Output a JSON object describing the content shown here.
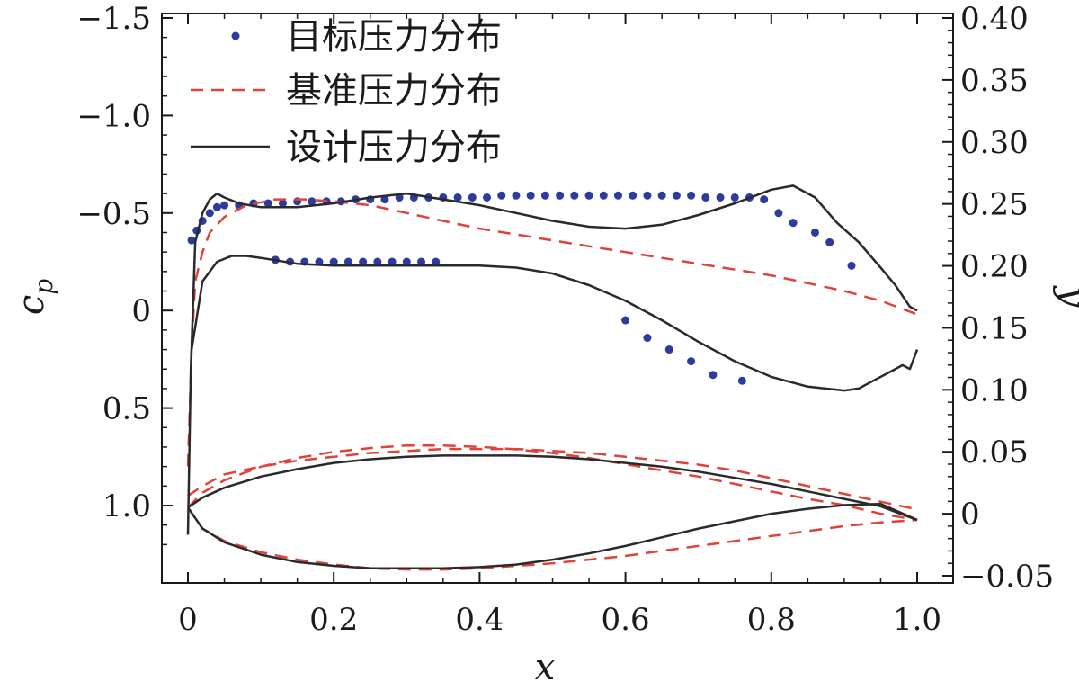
{
  "chart_data": {
    "type": "line",
    "xlabel": "x",
    "ylabel_left": "c_p",
    "ylabel_right": "y",
    "xlim": [
      0,
      1.0
    ],
    "ylim_left": [
      1.3,
      -1.5
    ],
    "ylim_right": [
      -0.05,
      0.4
    ],
    "x_ticks": [
      "0",
      "0.2",
      "0.4",
      "0.6",
      "0.8",
      "1.0"
    ],
    "y_left_ticks": [
      "−1.5",
      "−1.0",
      "−0.5",
      "0",
      "0.5",
      "1.0"
    ],
    "y_right_ticks": [
      "0.40",
      "0.35",
      "0.30",
      "0.25",
      "0.20",
      "0.15",
      "0.10",
      "0.05",
      "0",
      "−0.05"
    ],
    "legend_position": "top-left",
    "grid": false,
    "series": [
      {
        "name": "目标压力分布",
        "style": "dots",
        "color": "#2b3b9e",
        "axis": "left",
        "segments": [
          {
            "x": [
              0.005,
              0.012,
              0.02,
              0.03,
              0.04,
              0.05,
              0.07,
              0.09,
              0.11,
              0.13,
              0.15,
              0.17,
              0.19,
              0.21,
              0.23,
              0.25,
              0.27,
              0.29,
              0.31,
              0.33,
              0.35,
              0.37,
              0.39,
              0.41,
              0.43,
              0.45,
              0.47,
              0.49,
              0.51,
              0.53,
              0.55,
              0.57,
              0.59,
              0.61,
              0.63,
              0.65,
              0.67,
              0.69,
              0.71,
              0.73,
              0.75,
              0.77,
              0.79,
              0.81,
              0.83,
              0.86,
              0.88,
              0.91
            ],
            "y": [
              -0.36,
              -0.41,
              -0.46,
              -0.5,
              -0.53,
              -0.54,
              -0.54,
              -0.55,
              -0.55,
              -0.55,
              -0.56,
              -0.56,
              -0.56,
              -0.56,
              -0.57,
              -0.57,
              -0.57,
              -0.58,
              -0.58,
              -0.58,
              -0.58,
              -0.58,
              -0.58,
              -0.58,
              -0.59,
              -0.59,
              -0.59,
              -0.59,
              -0.59,
              -0.59,
              -0.59,
              -0.59,
              -0.59,
              -0.59,
              -0.59,
              -0.59,
              -0.59,
              -0.59,
              -0.58,
              -0.58,
              -0.58,
              -0.58,
              -0.57,
              -0.5,
              -0.45,
              -0.4,
              -0.35,
              -0.23
            ]
          },
          {
            "x": [
              0.12,
              0.14,
              0.16,
              0.18,
              0.2,
              0.22,
              0.24,
              0.26,
              0.28,
              0.3,
              0.32,
              0.34
            ],
            "y": [
              -0.26,
              -0.25,
              -0.25,
              -0.25,
              -0.25,
              -0.25,
              -0.25,
              -0.25,
              -0.25,
              -0.25,
              -0.25,
              -0.25
            ]
          },
          {
            "x": [
              0.6,
              0.63,
              0.66,
              0.69,
              0.72,
              0.76
            ],
            "y": [
              0.05,
              0.14,
              0.2,
              0.26,
              0.33,
              0.36
            ]
          }
        ]
      },
      {
        "name": "基准压力分布",
        "style": "dashed",
        "color": "#e0423a",
        "axis": "left",
        "segments": [
          {
            "x": [
              0.0,
              0.005,
              0.01,
              0.02,
              0.03,
              0.05,
              0.08,
              0.12,
              0.16,
              0.2,
              0.25,
              0.3,
              0.35,
              0.4,
              0.45,
              0.5,
              0.55,
              0.6,
              0.65,
              0.7,
              0.75,
              0.8,
              0.85,
              0.9,
              0.95,
              1.0
            ],
            "y": [
              0.8,
              0.2,
              -0.15,
              -0.3,
              -0.4,
              -0.48,
              -0.54,
              -0.57,
              -0.57,
              -0.56,
              -0.54,
              -0.5,
              -0.46,
              -0.42,
              -0.39,
              -0.36,
              -0.33,
              -0.3,
              -0.27,
              -0.24,
              -0.21,
              -0.18,
              -0.14,
              -0.1,
              -0.05,
              0.02
            ]
          },
          {
            "x": [
              0.0,
              0.02,
              0.05,
              0.1,
              0.15,
              0.2,
              0.25,
              0.3,
              0.35,
              0.4,
              0.45,
              0.5,
              0.55,
              0.6,
              0.65,
              0.7,
              0.75,
              0.8,
              0.85,
              0.9,
              0.95,
              1.0
            ],
            "y": [
              0.95,
              0.9,
              0.84,
              0.8,
              0.77,
              0.75,
              0.73,
              0.72,
              0.71,
              0.71,
              0.71,
              0.72,
              0.73,
              0.75,
              0.77,
              0.79,
              0.82,
              0.86,
              0.9,
              0.94,
              0.98,
              1.02
            ]
          }
        ]
      },
      {
        "name": "设计压力分布",
        "style": "solid",
        "color": "#2a2a2a",
        "axis": "left",
        "segments": [
          {
            "x": [
              0.0,
              0.004,
              0.01,
              0.02,
              0.03,
              0.04,
              0.05,
              0.07,
              0.1,
              0.15,
              0.2,
              0.25,
              0.3,
              0.35,
              0.4,
              0.45,
              0.5,
              0.55,
              0.6,
              0.65,
              0.7,
              0.75,
              0.8,
              0.83,
              0.86,
              0.89,
              0.92,
              0.95,
              0.97,
              0.99,
              1.0
            ],
            "y": [
              1.15,
              0.3,
              -0.35,
              -0.5,
              -0.57,
              -0.6,
              -0.58,
              -0.55,
              -0.53,
              -0.53,
              -0.55,
              -0.58,
              -0.6,
              -0.57,
              -0.54,
              -0.5,
              -0.46,
              -0.43,
              -0.42,
              -0.44,
              -0.49,
              -0.55,
              -0.62,
              -0.64,
              -0.58,
              -0.45,
              -0.35,
              -0.22,
              -0.13,
              -0.02,
              0.0
            ]
          },
          {
            "x": [
              0.005,
              0.02,
              0.04,
              0.06,
              0.08,
              0.1,
              0.15,
              0.2,
              0.25,
              0.3,
              0.35,
              0.4,
              0.45,
              0.5,
              0.55,
              0.6,
              0.65,
              0.7,
              0.75,
              0.8,
              0.85,
              0.9,
              0.92,
              0.94,
              0.96,
              0.98,
              0.99,
              1.0
            ],
            "y": [
              0.2,
              -0.15,
              -0.25,
              -0.28,
              -0.28,
              -0.27,
              -0.24,
              -0.23,
              -0.23,
              -0.23,
              -0.23,
              -0.23,
              -0.22,
              -0.19,
              -0.13,
              -0.05,
              0.05,
              0.16,
              0.26,
              0.34,
              0.39,
              0.41,
              0.4,
              0.36,
              0.32,
              0.28,
              0.3,
              0.2
            ]
          }
        ]
      },
      {
        "name": "基准压力分布",
        "style": "dashed",
        "color": "#e0423a",
        "axis": "right",
        "role": "airfoil-baseline",
        "segments": [
          {
            "x": [
              0.0,
              0.02,
              0.05,
              0.1,
              0.15,
              0.2,
              0.25,
              0.3,
              0.35,
              0.4,
              0.45,
              0.5,
              0.55,
              0.6,
              0.65,
              0.7,
              0.75,
              0.8,
              0.85,
              0.9,
              0.95,
              1.0
            ],
            "y": [
              0.005,
              0.017,
              0.027,
              0.038,
              0.045,
              0.05,
              0.053,
              0.055,
              0.055,
              0.054,
              0.052,
              0.049,
              0.045,
              0.04,
              0.035,
              0.03,
              0.024,
              0.018,
              0.012,
              0.007,
              0.0,
              -0.005
            ]
          },
          {
            "x": [
              0.0,
              0.02,
              0.05,
              0.1,
              0.15,
              0.2,
              0.25,
              0.3,
              0.35,
              0.4,
              0.45,
              0.5,
              0.55,
              0.6,
              0.65,
              0.7,
              0.75,
              0.8,
              0.85,
              0.9,
              0.95,
              1.0
            ],
            "y": [
              0.005,
              -0.012,
              -0.022,
              -0.031,
              -0.037,
              -0.041,
              -0.044,
              -0.045,
              -0.045,
              -0.044,
              -0.042,
              -0.04,
              -0.037,
              -0.034,
              -0.03,
              -0.026,
              -0.022,
              -0.018,
              -0.014,
              -0.01,
              -0.007,
              -0.005
            ]
          }
        ]
      },
      {
        "name": "设计压力分布",
        "style": "solid",
        "color": "#2a2a2a",
        "axis": "right",
        "role": "airfoil-design",
        "segments": [
          {
            "x": [
              0.0,
              0.02,
              0.05,
              0.1,
              0.15,
              0.2,
              0.25,
              0.3,
              0.35,
              0.4,
              0.45,
              0.5,
              0.55,
              0.6,
              0.65,
              0.7,
              0.75,
              0.8,
              0.85,
              0.9,
              0.95,
              1.0
            ],
            "y": [
              0.005,
              0.013,
              0.021,
              0.03,
              0.036,
              0.041,
              0.044,
              0.046,
              0.047,
              0.047,
              0.047,
              0.046,
              0.044,
              0.041,
              0.038,
              0.034,
              0.029,
              0.024,
              0.018,
              0.012,
              0.006,
              -0.005
            ]
          },
          {
            "x": [
              0.0,
              0.02,
              0.05,
              0.1,
              0.15,
              0.2,
              0.25,
              0.3,
              0.35,
              0.4,
              0.45,
              0.5,
              0.55,
              0.6,
              0.65,
              0.7,
              0.75,
              0.8,
              0.85,
              0.9,
              0.95,
              1.0
            ],
            "y": [
              0.005,
              -0.012,
              -0.023,
              -0.033,
              -0.039,
              -0.042,
              -0.044,
              -0.044,
              -0.044,
              -0.043,
              -0.041,
              -0.037,
              -0.032,
              -0.026,
              -0.019,
              -0.012,
              -0.006,
              0.0,
              0.004,
              0.007,
              0.008,
              -0.005
            ]
          }
        ]
      }
    ]
  }
}
